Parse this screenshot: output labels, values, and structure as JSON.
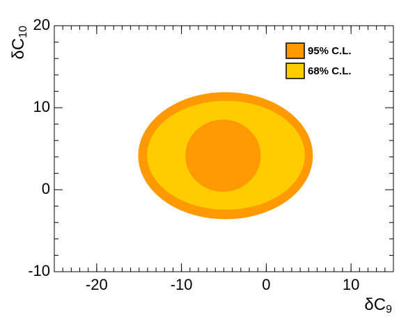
{
  "chart_data": {
    "type": "contour",
    "x_label": {
      "main": "δC",
      "sub": "9"
    },
    "y_label": {
      "main": "δC",
      "sub": "10"
    },
    "xlim": [
      -25,
      15
    ],
    "ylim": [
      -10,
      20
    ],
    "xticks": [
      -20,
      -10,
      0,
      10
    ],
    "yticks": [
      -10,
      0,
      10,
      20
    ],
    "x_minor_divisions": 10,
    "y_minor_divisions": 5,
    "legend": "top-right",
    "series": [
      {
        "name": "95% C.L.",
        "color": "#ff9900",
        "ellipses": [
          {
            "cx": -4.8,
            "cy": 4.15,
            "rx": 10.3,
            "ry": 7.75
          },
          {
            "cx": -5.1,
            "cy": 4.15,
            "rx": 4.45,
            "ry": 4.4
          }
        ]
      },
      {
        "name": "68% C.L.",
        "color": "#ffcc00",
        "ellipses": [
          {
            "cx": -4.75,
            "cy": 4.2,
            "rx": 9.3,
            "ry": 6.65
          }
        ]
      }
    ]
  }
}
